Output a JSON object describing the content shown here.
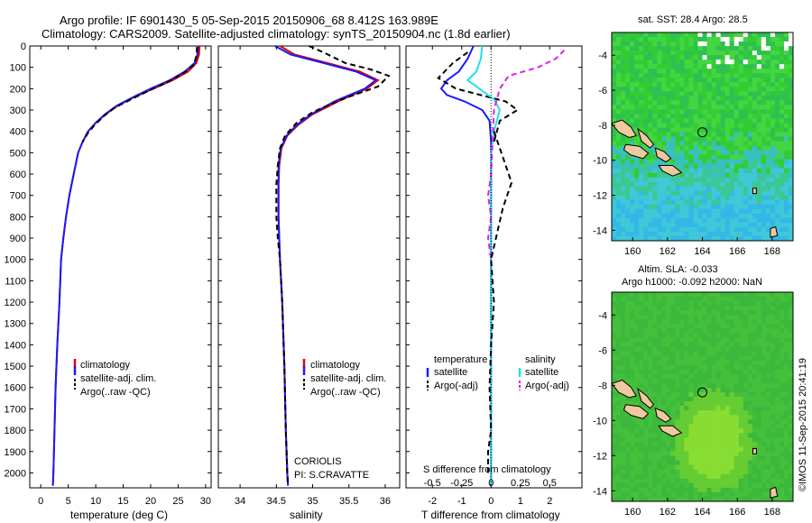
{
  "header": {
    "line1": "Argo profile: IF 6901430_5 05-Sep-2015 20150906_68 8.412S 163.989E",
    "line2": "Climatology: CARS2009. Satellite-adjusted climatology: synTS_20150904.nc (1.8d earlier)"
  },
  "colors": {
    "climatology": "#e00000",
    "satellite": "#1a1aff",
    "argo": "#000000",
    "sat_salinity": "#22e0f0",
    "argo_salinity": "#e020e0"
  },
  "depth_axis": {
    "ticks": [
      0,
      100,
      200,
      300,
      400,
      500,
      600,
      700,
      800,
      900,
      1000,
      1100,
      1200,
      1300,
      1400,
      1500,
      1600,
      1700,
      1800,
      1900,
      2000
    ],
    "ylim": [
      0,
      2070
    ]
  },
  "chart_data": [
    {
      "type": "line",
      "xlabel": "temperature (deg C)",
      "xlim": [
        -2,
        31
      ],
      "xticks": [
        0,
        5,
        10,
        15,
        20,
        25,
        30
      ],
      "legend": [
        "climatology",
        "satellite-adj. clim.",
        "Argo(..raw -QC)"
      ],
      "series": [
        {
          "name": "climatology",
          "key": "climatology",
          "points": [
            [
              28.9,
              0
            ],
            [
              28.8,
              40
            ],
            [
              28.3,
              80
            ],
            [
              26.8,
              120
            ],
            [
              24,
              160
            ],
            [
              20.5,
              200
            ],
            [
              17,
              240
            ],
            [
              14,
              280
            ],
            [
              11.8,
              320
            ],
            [
              10,
              360
            ],
            [
              8.6,
              400
            ],
            [
              7.6,
              450
            ],
            [
              6.8,
              500
            ],
            [
              6,
              600
            ],
            [
              5.2,
              700
            ],
            [
              4.6,
              800
            ],
            [
              4.1,
              900
            ],
            [
              3.7,
              1000
            ],
            [
              3.4,
              1200
            ],
            [
              3,
              1400
            ],
            [
              2.7,
              1600
            ],
            [
              2.5,
              1800
            ],
            [
              2.3,
              2000
            ],
            [
              2.2,
              2060
            ]
          ]
        },
        {
          "name": "satellite-adj. clim.",
          "key": "satellite",
          "points": [
            [
              28.6,
              0
            ],
            [
              28.5,
              40
            ],
            [
              28,
              80
            ],
            [
              26.2,
              120
            ],
            [
              23.5,
              160
            ],
            [
              20,
              200
            ],
            [
              16.8,
              240
            ],
            [
              13.8,
              280
            ],
            [
              11.7,
              320
            ],
            [
              10,
              360
            ],
            [
              8.6,
              400
            ],
            [
              7.6,
              450
            ],
            [
              6.8,
              500
            ],
            [
              6,
              600
            ],
            [
              5.2,
              700
            ],
            [
              4.6,
              800
            ],
            [
              4.1,
              900
            ],
            [
              3.7,
              1000
            ],
            [
              3.4,
              1200
            ],
            [
              3,
              1400
            ],
            [
              2.7,
              1600
            ],
            [
              2.5,
              1800
            ],
            [
              2.3,
              2000
            ],
            [
              2.2,
              2060
            ]
          ]
        },
        {
          "name": "Argo(..raw -QC)",
          "key": "argo",
          "points": [
            [
              28.4,
              5
            ],
            [
              28.4,
              40
            ],
            [
              27.8,
              90
            ],
            [
              25.8,
              130
            ],
            [
              23,
              170
            ],
            [
              19.6,
              210
            ],
            [
              16.4,
              250
            ],
            [
              13.4,
              290
            ],
            [
              11.4,
              330
            ],
            [
              9.8,
              370
            ],
            [
              8.5,
              410
            ],
            [
              7.6,
              450
            ]
          ]
        }
      ]
    },
    {
      "type": "line",
      "xlabel": "salinity",
      "xlim": [
        33.7,
        36.2
      ],
      "xticks": [
        34,
        34.5,
        35,
        35.5,
        36
      ],
      "legend": [
        "climatology",
        "satellite-adj. clim.",
        "Argo(..raw -QC)"
      ],
      "annotation": [
        "CORIOLIS",
        "PI: S.CRAVATTE"
      ],
      "series": [
        {
          "name": "climatology",
          "key": "climatology",
          "points": [
            [
              34.55,
              0
            ],
            [
              34.75,
              40
            ],
            [
              35.2,
              80
            ],
            [
              35.65,
              120
            ],
            [
              35.9,
              160
            ],
            [
              35.75,
              200
            ],
            [
              35.35,
              260
            ],
            [
              35,
              320
            ],
            [
              34.8,
              370
            ],
            [
              34.65,
              420
            ],
            [
              34.57,
              480
            ],
            [
              34.54,
              560
            ],
            [
              34.53,
              650
            ],
            [
              34.53,
              800
            ],
            [
              34.55,
              1000
            ],
            [
              34.58,
              1200
            ],
            [
              34.61,
              1500
            ],
            [
              34.63,
              1800
            ],
            [
              34.65,
              2000
            ],
            [
              34.66,
              2060
            ]
          ]
        },
        {
          "name": "satellite-adj. clim.",
          "key": "satellite",
          "points": [
            [
              34.48,
              0
            ],
            [
              34.7,
              40
            ],
            [
              35.15,
              80
            ],
            [
              35.6,
              120
            ],
            [
              35.87,
              160
            ],
            [
              35.72,
              200
            ],
            [
              35.3,
              260
            ],
            [
              34.98,
              320
            ],
            [
              34.78,
              370
            ],
            [
              34.64,
              420
            ],
            [
              34.56,
              480
            ],
            [
              34.53,
              560
            ],
            [
              34.53,
              650
            ],
            [
              34.53,
              800
            ],
            [
              34.55,
              1000
            ],
            [
              34.58,
              1200
            ],
            [
              34.61,
              1500
            ],
            [
              34.63,
              1800
            ],
            [
              34.65,
              2000
            ],
            [
              34.66,
              2060
            ]
          ]
        },
        {
          "name": "Argo(..raw -QC)",
          "key": "argo",
          "points": [
            [
              34.95,
              0
            ],
            [
              35.15,
              30
            ],
            [
              35.45,
              80
            ],
            [
              35.8,
              110
            ],
            [
              36.05,
              140
            ],
            [
              35.9,
              190
            ],
            [
              35.4,
              250
            ],
            [
              35,
              310
            ],
            [
              34.78,
              360
            ],
            [
              34.62,
              420
            ],
            [
              34.55,
              480
            ],
            [
              34.52,
              560
            ],
            [
              34.5,
              650
            ],
            [
              34.5,
              800
            ],
            [
              34.52,
              900
            ],
            [
              34.55,
              1000
            ],
            [
              34.58,
              1200
            ],
            [
              34.61,
              1500
            ],
            [
              34.63,
              1800
            ],
            [
              34.65,
              2000
            ],
            [
              34.66,
              2060
            ]
          ]
        }
      ]
    },
    {
      "type": "line",
      "xlabel": "T difference from climatology",
      "xlim": [
        -2.9,
        3.1
      ],
      "xticks": [
        -2,
        -1,
        0,
        1,
        2
      ],
      "top_label": "S difference from climatology",
      "s_ticks": [
        {
          "label": "-0.5",
          "x": -2
        },
        {
          "label": "-0.25",
          "x": -1
        },
        {
          "label": "0",
          "x": 0
        },
        {
          "label": "0.25",
          "x": 1
        },
        {
          "label": "0.5",
          "x": 2
        }
      ],
      "legend_left": {
        "title": "temperature",
        "items": [
          "satellite",
          "Argo(-adj)"
        ]
      },
      "legend_right": {
        "title": "salinity",
        "items": [
          "satellite",
          "Argo(-adj)"
        ]
      },
      "series": [
        {
          "name": "satellite",
          "key": "satellite",
          "points": [
            [
              -0.6,
              0
            ],
            [
              -0.8,
              60
            ],
            [
              -1.1,
              120
            ],
            [
              -1.5,
              160
            ],
            [
              -1.7,
              200
            ],
            [
              -1.5,
              230
            ],
            [
              -0.9,
              260
            ],
            [
              -0.3,
              300
            ],
            [
              -0.05,
              350
            ],
            [
              0,
              450
            ],
            [
              0,
              2060
            ]
          ]
        },
        {
          "name": "Argo(-adj)",
          "key": "argo",
          "points": [
            [
              -0.8,
              30
            ],
            [
              -1.3,
              80
            ],
            [
              -1.8,
              150
            ],
            [
              -1.2,
              200
            ],
            [
              0.5,
              260
            ],
            [
              0.9,
              300
            ],
            [
              0.3,
              350
            ],
            [
              0.1,
              450
            ]
          ]
        },
        {
          "name": "satellite",
          "key": "sat_salinity",
          "points": [
            [
              -0.3,
              0
            ],
            [
              -0.35,
              60
            ],
            [
              -0.5,
              120
            ],
            [
              -0.8,
              160
            ],
            [
              -0.4,
              200
            ],
            [
              0.1,
              250
            ],
            [
              0.3,
              300
            ],
            [
              0.1,
              400
            ],
            [
              0,
              500
            ],
            [
              0,
              2060
            ]
          ]
        },
        {
          "name": "Argo(-adj)",
          "key": "argo_salinity",
          "points": [
            [
              2.5,
              20
            ],
            [
              2.2,
              60
            ],
            [
              1.6,
              100
            ],
            [
              0.6,
              140
            ],
            [
              0.3,
              200
            ],
            [
              0.1,
              300
            ],
            [
              0,
              600
            ],
            [
              -0.1,
              700
            ],
            [
              0,
              800
            ],
            [
              -0.1,
              900
            ],
            [
              0,
              1000
            ]
          ]
        },
        {
          "name": "Argo(-adj)",
          "key": "argo_s_dashed",
          "points": [
            [
              0.1,
              400
            ],
            [
              0.4,
              520
            ],
            [
              0.7,
              640
            ],
            [
              0.4,
              760
            ],
            [
              0.2,
              880
            ],
            [
              0,
              1000
            ],
            [
              0.1,
              1200
            ],
            [
              0,
              1400
            ],
            [
              -0.05,
              1600
            ],
            [
              0,
              1800
            ],
            [
              -0.1,
              1900
            ],
            [
              -0.1,
              2000
            ]
          ]
        }
      ]
    }
  ],
  "maps": {
    "sst": {
      "title": "sat. SST: 28.4 Argo: 28.5",
      "xticks": [
        160,
        162,
        164,
        166,
        168
      ],
      "yticks": [
        -4,
        -6,
        -8,
        -10,
        -12,
        -14
      ],
      "xlim": [
        158.8,
        169.2
      ],
      "ylim": [
        -14.6,
        -2.7
      ],
      "marker": [
        164.0,
        -8.4
      ]
    },
    "sla": {
      "title_line1": "Altim. SLA: -0.033",
      "title_line2": "Argo h1000: -0.092 h2000: NaN",
      "xticks": [
        160,
        162,
        164,
        166,
        168
      ],
      "yticks": [
        -4,
        -6,
        -8,
        -10,
        -12,
        -14
      ],
      "xlim": [
        158.8,
        169.2
      ],
      "ylim": [
        -14.6,
        -2.7
      ],
      "marker": [
        164.0,
        -8.4
      ]
    }
  },
  "footer_right": "©IMOS 11-Sep-2015 20:41:19"
}
